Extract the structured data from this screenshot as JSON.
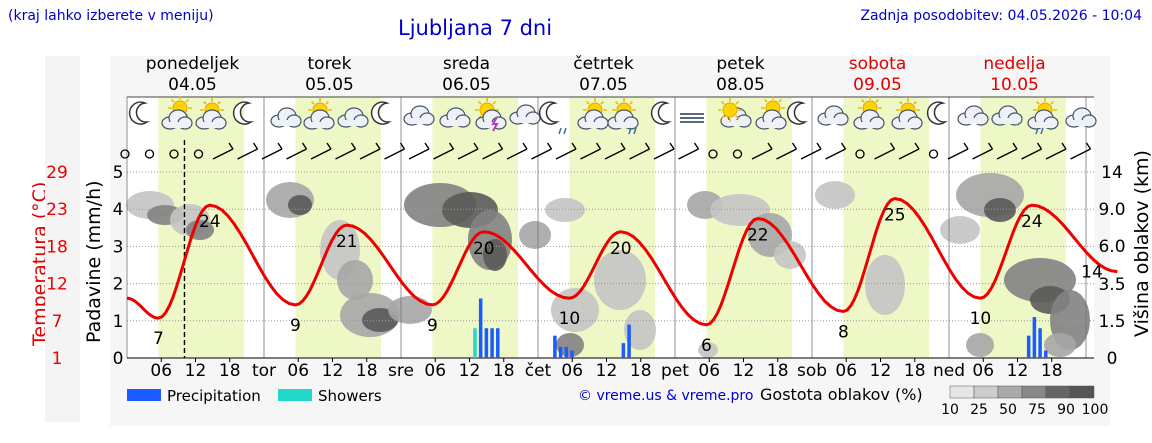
{
  "header": {
    "hint": "(kraj lahko izberete v meniju)",
    "title": "Ljubljana 7 dni",
    "updated": "Zadnja posodobitev: 04.05.2026 - 10:04"
  },
  "axes": {
    "temperature_label": "Temperatura (°C)",
    "precip_label": "Padavine (mm/h)",
    "cloud_height_label": "Višina oblakov (km)",
    "temp_ticks": [
      "29",
      "23",
      "18",
      "12",
      "7",
      "1"
    ],
    "precip_ticks": [
      "5",
      "4",
      "3",
      "2",
      "1",
      "0"
    ],
    "cloud_ticks": [
      "14",
      "9.0",
      "6.0",
      "3.5",
      "1.5",
      "0"
    ]
  },
  "days": [
    {
      "name": "ponedeljek",
      "date": "04.05",
      "weekend": false,
      "short": ""
    },
    {
      "name": "torek",
      "date": "05.05",
      "weekend": false,
      "short": "tor"
    },
    {
      "name": "sreda",
      "date": "06.05",
      "weekend": false,
      "short": "sre"
    },
    {
      "name": "četrtek",
      "date": "07.05",
      "weekend": false,
      "short": "čet"
    },
    {
      "name": "petek",
      "date": "08.05",
      "weekend": false,
      "short": "pet"
    },
    {
      "name": "sobota",
      "date": "09.05",
      "weekend": true,
      "short": "sob"
    },
    {
      "name": "nedelja",
      "date": "10.05",
      "weekend": true,
      "short": "ned"
    }
  ],
  "hour_ticks": [
    "06",
    "12",
    "18"
  ],
  "legend": {
    "precipitation": "Precipitation",
    "showers": "Showers",
    "credit": "© vreme.us & vreme.pro",
    "cloud_density_title": "Gostota oblakov (%)",
    "cloud_density_steps": [
      "10",
      "25",
      "50",
      "75",
      "90",
      "100"
    ]
  },
  "colors": {
    "temperature": "#ee0000",
    "precipitation": "#1a5cff",
    "showers": "#22d8c8",
    "daylight": "#eef7c6",
    "weekend_text": "#e00000",
    "link": "#0000cc"
  },
  "chart_data": {
    "type": "line",
    "title": "Ljubljana 7 dni",
    "xlabel": "",
    "ylabel": "Temperatura (°C)",
    "ylim": [
      1,
      29
    ],
    "temperature_extremes": [
      {
        "day": "04.05",
        "min": 7,
        "max": 24
      },
      {
        "day": "05.05",
        "min": 9,
        "max": 21
      },
      {
        "day": "06.05",
        "min": 9,
        "max": 20
      },
      {
        "day": "07.05",
        "min": 10,
        "max": 20
      },
      {
        "day": "08.05",
        "min": 6,
        "max": 22
      },
      {
        "day": "09.05",
        "min": 8,
        "max": 25
      },
      {
        "day": "10.05",
        "min": 10,
        "max": 24
      },
      {
        "day": "11.05",
        "min": 14,
        "max": null
      }
    ],
    "precipitation_mm_h": [
      {
        "day": "06.05",
        "hour": 13,
        "value": 0.8,
        "type": "showers"
      },
      {
        "day": "06.05",
        "hour": 14,
        "value": 1.6,
        "type": "precipitation"
      },
      {
        "day": "06.05",
        "hour": 15,
        "value": 0.8,
        "type": "precipitation"
      },
      {
        "day": "06.05",
        "hour": 16,
        "value": 0.8,
        "type": "precipitation"
      },
      {
        "day": "06.05",
        "hour": 17,
        "value": 0.8,
        "type": "precipitation"
      },
      {
        "day": "07.05",
        "hour": 3,
        "value": 0.6,
        "type": "precipitation"
      },
      {
        "day": "07.05",
        "hour": 4,
        "value": 0.3,
        "type": "precipitation"
      },
      {
        "day": "07.05",
        "hour": 5,
        "value": 0.3,
        "type": "precipitation"
      },
      {
        "day": "07.05",
        "hour": 6,
        "value": 0.2,
        "type": "precipitation"
      },
      {
        "day": "07.05",
        "hour": 15,
        "value": 0.4,
        "type": "precipitation"
      },
      {
        "day": "07.05",
        "hour": 16,
        "value": 0.9,
        "type": "precipitation"
      },
      {
        "day": "10.05",
        "hour": 14,
        "value": 0.6,
        "type": "precipitation"
      },
      {
        "day": "10.05",
        "hour": 15,
        "value": 1.1,
        "type": "precipitation"
      },
      {
        "day": "10.05",
        "hour": 16,
        "value": 0.8,
        "type": "precipitation"
      },
      {
        "day": "10.05",
        "hour": 17,
        "value": 0.2,
        "type": "precipitation"
      }
    ]
  }
}
